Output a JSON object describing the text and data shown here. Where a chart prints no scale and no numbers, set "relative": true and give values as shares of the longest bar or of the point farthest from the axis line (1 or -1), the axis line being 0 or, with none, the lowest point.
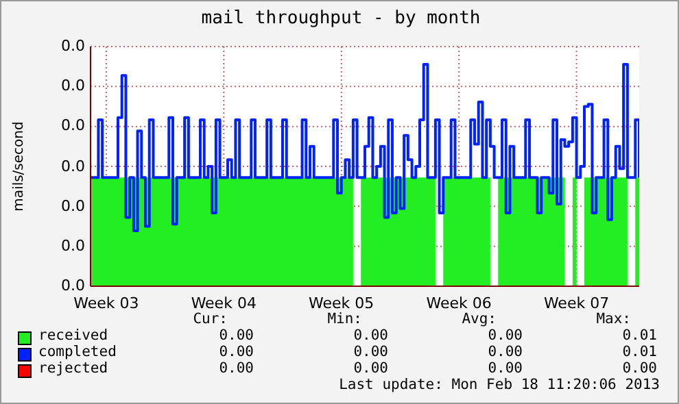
{
  "chart_data": {
    "type": "step",
    "title": "mail throughput - by month",
    "ylabel": "mails/second",
    "relative": true,
    "grid": true,
    "legend": "bottom",
    "categories": [
      null,
      null,
      null,
      null,
      "Week 03",
      null,
      null,
      null,
      null,
      null,
      null,
      null,
      null,
      null,
      null,
      null,
      null,
      null,
      null,
      null,
      null,
      null,
      null,
      null,
      null,
      null,
      null,
      null,
      null,
      null,
      null,
      null,
      null,
      null,
      "Week 04",
      null,
      null,
      null,
      null,
      null,
      null,
      null,
      null,
      null,
      null,
      null,
      null,
      null,
      null,
      null,
      null,
      null,
      null,
      null,
      null,
      null,
      null,
      null,
      null,
      null,
      null,
      null,
      null,
      null,
      "Week 05",
      null,
      null,
      null,
      null,
      null,
      null,
      null,
      null,
      null,
      null,
      null,
      null,
      null,
      null,
      null,
      null,
      null,
      null,
      null,
      null,
      null,
      null,
      null,
      null,
      null,
      null,
      null,
      null,
      null,
      "Week 06",
      null,
      null,
      null,
      null,
      null,
      null,
      null,
      null,
      null,
      null,
      null,
      null,
      null,
      null,
      null,
      null,
      null,
      null,
      null,
      null,
      null,
      null,
      null,
      null,
      null,
      null,
      null,
      null,
      null,
      "Week 07",
      null,
      null,
      null,
      null,
      null,
      null,
      null,
      null,
      null,
      null,
      null,
      null,
      null,
      null,
      null,
      null
    ],
    "series": [
      {
        "name": "received",
        "type": "area",
        "color": "#22ee22",
        "values": [
          0.49,
          0.49,
          0.49,
          0.49,
          0.49,
          0.49,
          0.49,
          0.49,
          0.49,
          0.49,
          0.49,
          0.49,
          0.49,
          0.49,
          0.49,
          0.49,
          0.49,
          0.49,
          0.49,
          0.49,
          0.49,
          0.49,
          0.49,
          0.49,
          0.49,
          0.49,
          0.49,
          0.49,
          0.49,
          0.49,
          0.49,
          0.49,
          0.49,
          0.49,
          0.49,
          0.49,
          0.49,
          0.49,
          0.49,
          0.49,
          0.49,
          0.49,
          0.49,
          0.49,
          0.49,
          0.49,
          0.49,
          0.49,
          0.49,
          0.49,
          0.49,
          0.49,
          0.49,
          0.49,
          0.49,
          0.49,
          0.49,
          0.49,
          0.49,
          0.49,
          0.49,
          0.49,
          0.49,
          0.49,
          0.49,
          0.49,
          0.49,
          0.49,
          null,
          0.49,
          0.49,
          0.49,
          0.49,
          0.49,
          0.49,
          0.49,
          0.49,
          0.49,
          0.49,
          0.49,
          0.49,
          0.49,
          0.49,
          0.49,
          0.49,
          0.49,
          0.49,
          0.49,
          0.49,
          null,
          0.49,
          0.49,
          0.49,
          0.49,
          0.49,
          0.49,
          0.49,
          0.49,
          0.49,
          0.49,
          0.49,
          0.49,
          0.49,
          null,
          0.49,
          0.49,
          0.49,
          0.49,
          0.49,
          0.49,
          0.49,
          0.49,
          0.49,
          0.49,
          0.49,
          0.49,
          0.49,
          0.49,
          0.49,
          0.49,
          0.49,
          0.49,
          null,
          0.49,
          0.49,
          null,
          0.49,
          0.49,
          0.49,
          0.49,
          0.49,
          0.49,
          0.49,
          0.49,
          0.49,
          0.49,
          0.49,
          0.49,
          null,
          0.49,
          0.49
        ]
      },
      {
        "name": "completed",
        "color": "#0022ff",
        "values": [
          0.49,
          0.49,
          0.75,
          0.49,
          0.49,
          0.49,
          0.49,
          0.76,
          0.95,
          0.31,
          0.49,
          0.25,
          0.7,
          0.49,
          0.27,
          0.75,
          0.49,
          0.49,
          0.49,
          0.49,
          0.76,
          0.28,
          0.49,
          0.49,
          0.76,
          0.49,
          0.49,
          0.49,
          0.75,
          0.49,
          0.54,
          0.33,
          0.75,
          0.49,
          0.49,
          0.57,
          0.49,
          0.75,
          0.49,
          0.49,
          0.49,
          0.75,
          0.49,
          0.49,
          0.49,
          0.75,
          0.49,
          0.49,
          0.49,
          0.75,
          0.49,
          0.49,
          0.49,
          0.49,
          0.75,
          0.49,
          0.63,
          0.49,
          0.49,
          0.49,
          0.49,
          0.49,
          0.75,
          0.42,
          0.49,
          0.57,
          0.49,
          0.75,
          0.49,
          0.49,
          0.63,
          0.76,
          0.49,
          0.54,
          0.63,
          0.31,
          0.75,
          0.33,
          0.49,
          0.35,
          0.68,
          0.57,
          0.49,
          0.54,
          0.75,
          1.0,
          0.49,
          0.49,
          0.75,
          0.33,
          0.49,
          0.49,
          0.75,
          0.49,
          0.49,
          0.49,
          0.49,
          0.75,
          0.64,
          0.83,
          0.49,
          0.75,
          0.63,
          0.49,
          0.49,
          0.75,
          0.33,
          0.63,
          0.49,
          0.49,
          0.49,
          0.75,
          0.49,
          0.49,
          0.33,
          0.49,
          0.49,
          0.42,
          0.75,
          0.37,
          0.66,
          0.63,
          0.65,
          0.76,
          0.49,
          0.54,
          0.81,
          0.82,
          0.33,
          0.49,
          0.49,
          0.75,
          0.3,
          0.49,
          0.63,
          0.53,
          1.0,
          0.49,
          0.49,
          0.75,
          0.49
        ]
      },
      {
        "name": "rejected",
        "type": "line",
        "color": "#ff0000",
        "values": [
          null,
          null,
          null,
          null,
          null,
          null,
          null,
          null,
          null,
          null,
          null,
          null,
          null,
          null,
          null,
          null,
          null,
          null,
          null,
          null,
          null,
          null,
          null,
          null,
          null,
          null,
          null,
          null,
          null,
          null,
          null,
          null,
          null,
          null,
          null,
          null,
          null,
          null,
          null,
          null,
          null,
          null,
          null,
          null,
          null,
          null,
          null,
          null,
          null,
          null,
          null,
          null,
          null,
          null,
          null,
          null,
          null,
          null,
          null,
          null,
          null,
          null,
          null,
          null,
          null,
          null,
          null,
          null,
          null,
          null,
          null,
          null,
          null,
          null,
          null,
          null,
          null,
          null,
          null,
          null,
          null,
          null,
          null,
          null,
          null,
          null,
          null,
          null,
          null,
          null,
          null,
          null,
          null,
          null,
          null,
          null,
          null,
          null,
          null,
          null,
          null,
          null,
          null,
          null,
          null,
          null,
          null,
          null,
          null,
          null,
          null,
          null,
          null,
          null,
          null,
          null,
          null,
          null,
          null,
          null,
          null,
          null,
          null,
          null,
          null,
          null,
          null,
          null,
          null,
          null,
          null,
          null,
          null,
          null,
          null,
          null,
          null,
          null,
          null,
          null,
          null
        ]
      }
    ],
    "annotations": [
      "0.0",
      "0.0",
      "0.0",
      "0.0",
      "0.0",
      "0.0",
      "0.0",
      "Cur:",
      "Min:",
      "Avg:",
      "Max:",
      "0.00",
      "0.00",
      "0.00",
      "0.01",
      "0.00",
      "0.00",
      "0.00",
      "0.01",
      "0.00",
      "0.00",
      "0.00",
      "0.00",
      "Last update: Mon Feb 18 11:20:06 2013"
    ]
  }
}
